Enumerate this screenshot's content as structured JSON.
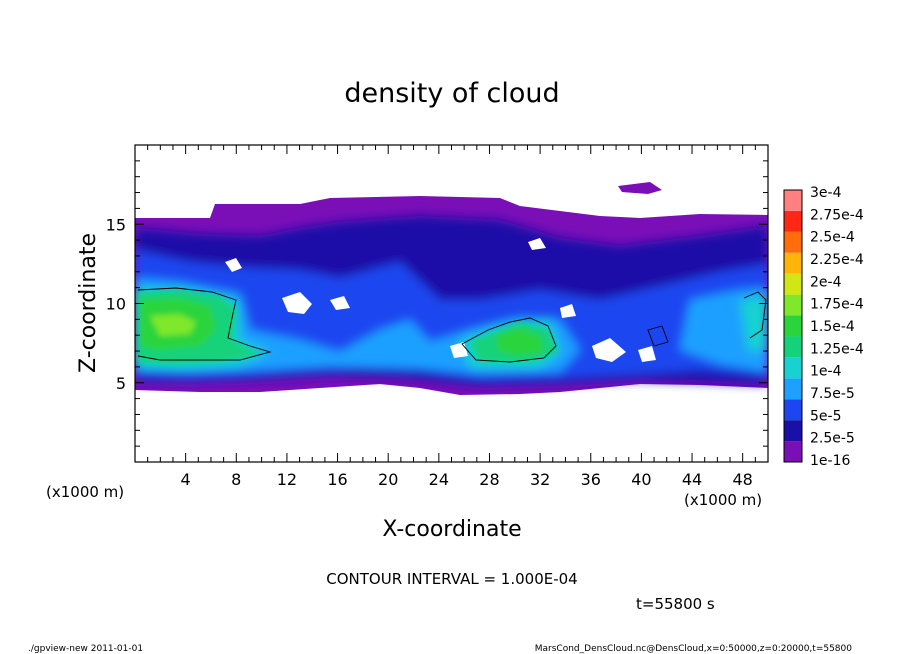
{
  "chart_data": {
    "type": "heatmap",
    "title": "density of cloud",
    "xlabel": "X-coordinate",
    "ylabel": "Z-coordinate",
    "x_unit_left": "(x1000 m)",
    "x_unit_right": "(x1000 m)",
    "xlim": [
      0,
      50
    ],
    "ylim": [
      0,
      20
    ],
    "xticks": [
      "4",
      "8",
      "12",
      "16",
      "20",
      "24",
      "28",
      "32",
      "36",
      "40",
      "44",
      "48"
    ],
    "yticks": [
      "5",
      "10",
      "15"
    ],
    "colorbar_labels": [
      "1e-16",
      "2.5e-5",
      "5e-5",
      "7.5e-5",
      "1e-4",
      "1.25e-4",
      "1.5e-4",
      "1.75e-4",
      "2e-4",
      "2.25e-4",
      "2.5e-4",
      "2.75e-4",
      "3e-4"
    ],
    "colorbar_colors": [
      "#7a0fb8",
      "#1a10a8",
      "#1e46f0",
      "#1ea0ff",
      "#18d2d2",
      "#14d27a",
      "#2ad43c",
      "#7fe82a",
      "#d2e614",
      "#ffb40a",
      "#ff6e0a",
      "#ff2814",
      "#ff8080"
    ],
    "contour_interval": "CONTOUR INTERVAL = 1.000E-04",
    "time_label": "t=55800 s"
  },
  "footer": {
    "left": "./gpview-new   2011-01-01",
    "right": "MarsCond_DensCloud.nc@DensCloud,x=0:50000,z=0:20000,t=55800"
  }
}
